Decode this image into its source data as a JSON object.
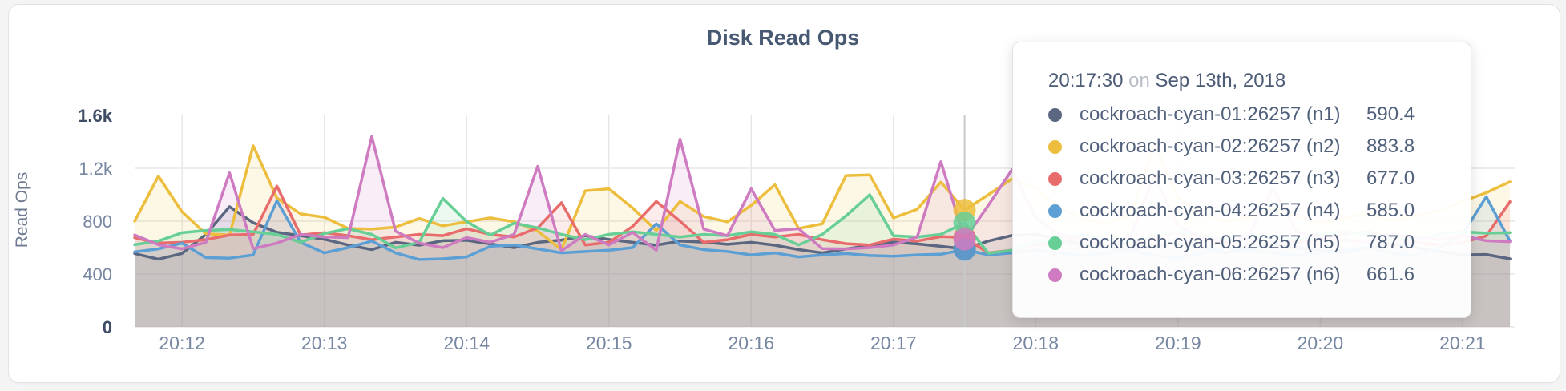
{
  "chart_data": {
    "type": "line",
    "title": "Disk Read Ops",
    "ylabel": "Read Ops",
    "ylim": [
      0,
      1600
    ],
    "grid": true,
    "x_start_time": "20:11:40",
    "x_interval_sec": 10,
    "x_ticks": [
      {
        "label": "20:12",
        "t": 20
      },
      {
        "label": "20:13",
        "t": 80
      },
      {
        "label": "20:14",
        "t": 140
      },
      {
        "label": "20:15",
        "t": 200
      },
      {
        "label": "20:16",
        "t": 260
      },
      {
        "label": "20:17",
        "t": 320
      },
      {
        "label": "20:18",
        "t": 380
      },
      {
        "label": "20:19",
        "t": 440
      },
      {
        "label": "20:20",
        "t": 500
      },
      {
        "label": "20:21",
        "t": 560
      }
    ],
    "y_ticks": [
      {
        "label": "0",
        "value": 0,
        "strong": true
      },
      {
        "label": "400",
        "value": 400,
        "strong": false
      },
      {
        "label": "800",
        "value": 800,
        "strong": false
      },
      {
        "label": "1.2k",
        "value": 1200,
        "strong": false
      },
      {
        "label": "1.6k",
        "value": 1600,
        "strong": true
      }
    ],
    "hover_index": 35,
    "series": [
      {
        "name": "cockroach-cyan-01:26257 (n1)",
        "color": "#5b6781",
        "values": [
          555,
          513,
          556,
          700,
          910,
          788,
          716,
          690,
          663,
          620,
          585,
          640,
          618,
          652,
          655,
          628,
          600,
          640,
          657,
          690,
          662,
          640,
          618,
          650,
          642,
          625,
          640,
          618,
          585,
          560,
          590,
          615,
          642,
          628,
          610,
          590.4,
          650,
          692,
          700,
          660,
          622,
          600,
          580,
          612,
          632,
          600,
          562,
          590,
          620,
          600,
          580,
          562,
          600,
          630,
          600,
          570,
          545,
          548,
          515
        ]
      },
      {
        "name": "cockroach-cyan-02:26257 (n2)",
        "color": "#edbe3d",
        "values": [
          800,
          1140,
          870,
          705,
          695,
          1370,
          975,
          855,
          830,
          745,
          740,
          755,
          820,
          765,
          795,
          825,
          795,
          725,
          585,
          1030,
          1045,
          900,
          730,
          950,
          835,
          795,
          920,
          1075,
          745,
          780,
          1145,
          1150,
          825,
          890,
          1095,
          883.8,
          1000,
          1120,
          1050,
          900,
          820,
          780,
          850,
          1390,
          980,
          860,
          800,
          830,
          900,
          840,
          790,
          820,
          860,
          800,
          840,
          880,
          950,
          1015,
          1098
        ]
      },
      {
        "name": "cockroach-cyan-03:26257 (n3)",
        "color": "#e96c6c",
        "values": [
          676,
          634,
          640,
          660,
          695,
          700,
          1065,
          695,
          713,
          690,
          660,
          680,
          700,
          690,
          743,
          700,
          680,
          750,
          940,
          620,
          640,
          760,
          950,
          800,
          640,
          660,
          700,
          680,
          700,
          660,
          630,
          620,
          664,
          650,
          683,
          677.0,
          560,
          580,
          620,
          640,
          700,
          660,
          620,
          680,
          720,
          660,
          640,
          700,
          680,
          640,
          660,
          700,
          720,
          680,
          640,
          620,
          640,
          688,
          947
        ]
      },
      {
        "name": "cockroach-cyan-04:26257 (n4)",
        "color": "#5c9fd4",
        "values": [
          568,
          590,
          634,
          525,
          520,
          545,
          955,
          640,
          560,
          600,
          650,
          560,
          510,
          515,
          530,
          610,
          620,
          590,
          560,
          570,
          580,
          600,
          780,
          620,
          585,
          570,
          545,
          560,
          530,
          545,
          555,
          540,
          535,
          545,
          550,
          585.0,
          545,
          560,
          580,
          560,
          540,
          560,
          580,
          540,
          520,
          560,
          600,
          580,
          560,
          540,
          560,
          580,
          600,
          560,
          540,
          600,
          700,
          985,
          650
        ]
      },
      {
        "name": "cockroach-cyan-05:26257 (n5)",
        "color": "#67ce96",
        "values": [
          622,
          650,
          713,
          730,
          737,
          720,
          700,
          640,
          707,
          743,
          700,
          598,
          640,
          972,
          797,
          695,
          785,
          750,
          700,
          660,
          700,
          720,
          700,
          680,
          700,
          690,
          720,
          700,
          620,
          700,
          840,
          1000,
          690,
          680,
          700,
          787.0,
          557,
          580,
          640,
          680,
          700,
          660,
          640,
          700,
          720,
          680,
          660,
          700,
          680,
          660,
          700,
          720,
          700,
          680,
          660,
          700,
          720,
          710,
          713
        ]
      },
      {
        "name": "cockroach-cyan-06:26257 (n6)",
        "color": "#ce7bc1",
        "values": [
          695,
          622,
          590,
          640,
          1165,
          592,
          634,
          700,
          680,
          676,
          1440,
          725,
          634,
          600,
          676,
          640,
          700,
          1215,
          575,
          700,
          620,
          715,
          580,
          1420,
          740,
          690,
          1045,
          730,
          743,
          592,
          590,
          600,
          620,
          680,
          1250,
          661.6,
          920,
          1188,
          830,
          700,
          660,
          620,
          680,
          1150,
          760,
          680,
          640,
          700,
          1050,
          720,
          680,
          660,
          640,
          700,
          680,
          660,
          690,
          652,
          645
        ]
      }
    ]
  },
  "tooltip": {
    "time": "20:17:30",
    "on": "on",
    "date": "Sep 13th, 2018",
    "rows": [
      {
        "label": "cockroach-cyan-01:26257 (n1)",
        "value": "590.4",
        "color": "#5b6781"
      },
      {
        "label": "cockroach-cyan-02:26257 (n2)",
        "value": "883.8",
        "color": "#edbe3d"
      },
      {
        "label": "cockroach-cyan-03:26257 (n3)",
        "value": "677.0",
        "color": "#e96c6c"
      },
      {
        "label": "cockroach-cyan-04:26257 (n4)",
        "value": "585.0",
        "color": "#5c9fd4"
      },
      {
        "label": "cockroach-cyan-05:26257 (n5)",
        "value": "787.0",
        "color": "#67ce96"
      },
      {
        "label": "cockroach-cyan-06:26257 (n6)",
        "value": "661.6",
        "color": "#ce7bc1"
      }
    ]
  },
  "colors": {
    "title_text": "#475872",
    "axis_tick_text": "#7787a2",
    "axis_tick_strong": "#3e4c66",
    "axis_label_text": "#6e7b93",
    "grid_line": "#e7e7e7",
    "hover_guideline": "#c9c9c9",
    "panel_background": "#ffffff",
    "page_background": "#f4f4f5"
  }
}
